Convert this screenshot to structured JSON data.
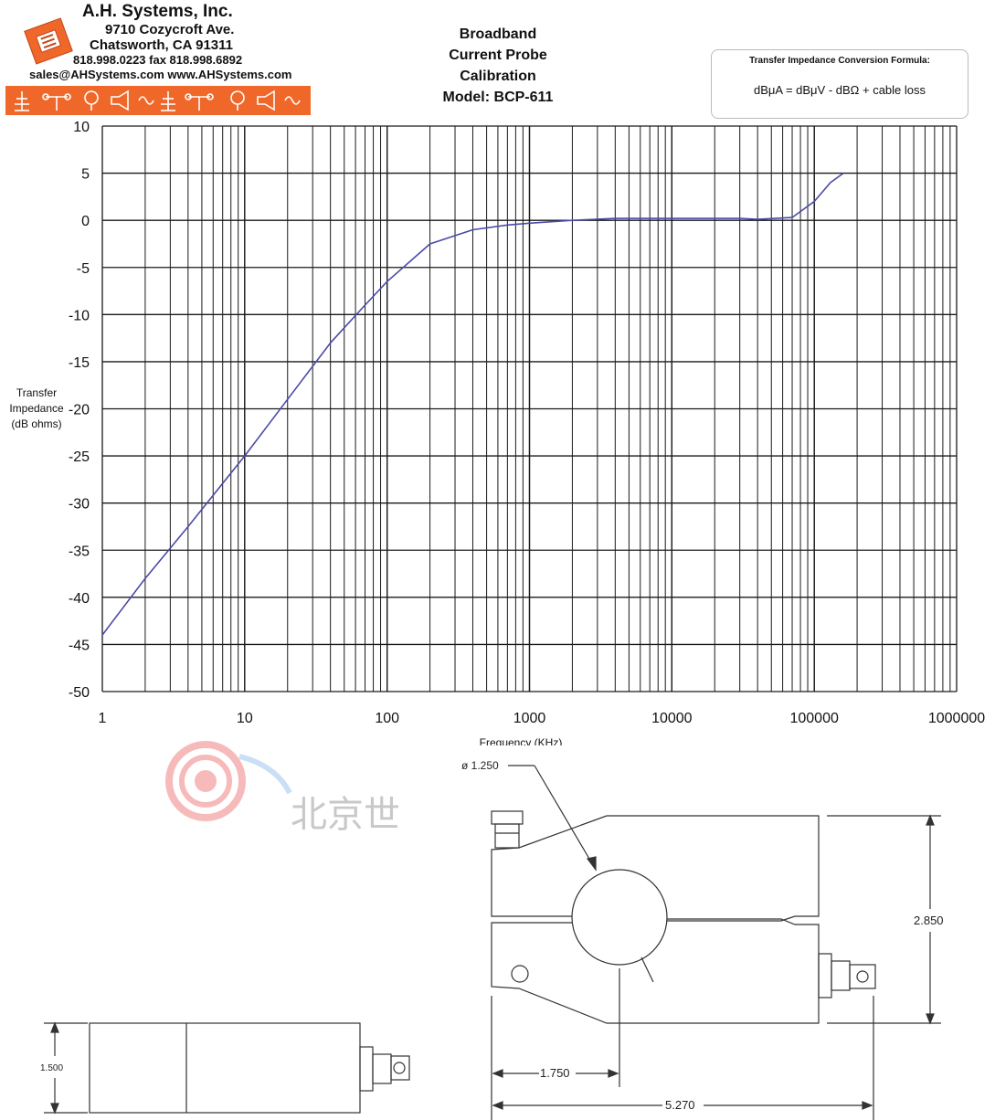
{
  "header": {
    "company_name": "A.H. Systems, Inc.",
    "address": "9710 Cozycroft Ave.",
    "city": "Chatsworth, CA 91311",
    "phone_fax": "818.998.0223 fax 818.998.6892",
    "web": "sales@AHSystems.com www.AHSystems.com",
    "title_lines": [
      "Broadband",
      "Current Probe",
      "Calibration",
      "Model: BCP-611"
    ]
  },
  "formula": {
    "title": "Transfer Impedance Conversion Formula:",
    "text": "dBμA = dBμV - dBΩ + cable loss"
  },
  "colors": {
    "banner": "#f0672a",
    "series": "#4a4aa8",
    "grid": "#1a1a1a"
  },
  "chart_data": {
    "type": "line",
    "xlabel": "Frequency (KHz)",
    "ylabel": "Transfer Impedance (dB ohms)",
    "x_scale": "log",
    "xlim": [
      1,
      1000000
    ],
    "ylim": [
      -50,
      10
    ],
    "grid": true,
    "x_ticks": [
      "1",
      "10",
      "100",
      "1000",
      "10000",
      "100000",
      "1000000"
    ],
    "y_ticks": [
      "10",
      "5",
      "0",
      "-5",
      "-10",
      "-15",
      "-20",
      "-25",
      "-30",
      "-35",
      "-40",
      "-45",
      "-50"
    ],
    "series": [
      {
        "x": [
          1,
          2,
          4,
          10,
          20,
          40,
          70,
          100,
          200,
          400,
          700,
          1000,
          2000,
          4000,
          10000,
          30000,
          40000,
          70000,
          100000,
          130000,
          160000
        ],
        "values": [
          -44,
          -38,
          -32.5,
          -25,
          -19,
          -13,
          -9,
          -6.5,
          -2.5,
          -1,
          -0.5,
          -0.3,
          0,
          0.2,
          0.2,
          0.2,
          0.1,
          0.3,
          2,
          4,
          5
        ]
      }
    ]
  },
  "drawing": {
    "diameter": "ø 1.250",
    "height": "2.850",
    "width_short": "1.750",
    "width_long": "5.270",
    "side_height": "1.500",
    "watermark": "北京世"
  }
}
